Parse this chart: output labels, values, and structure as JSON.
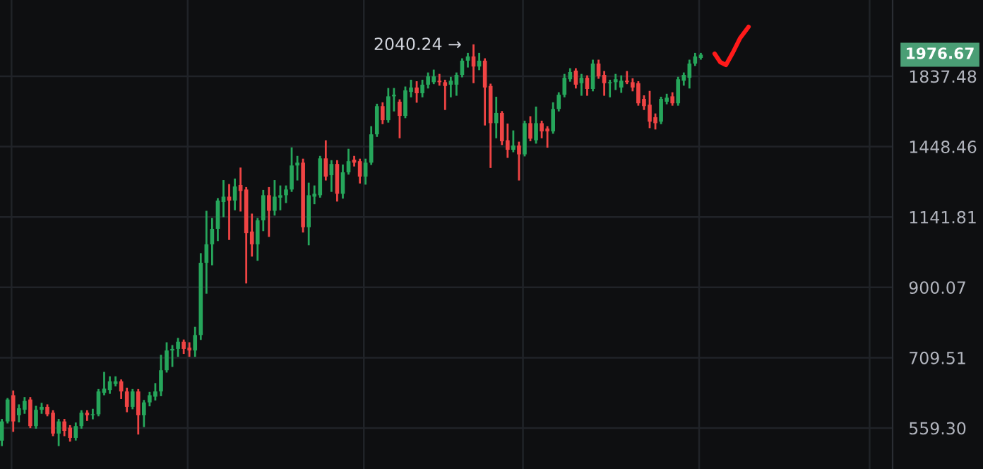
{
  "chart_data": {
    "type": "candlestick",
    "categories": [
      null,
      null,
      null,
      null,
      null,
      null,
      null,
      null,
      null,
      null,
      null,
      null,
      null,
      null,
      null,
      null,
      null,
      null,
      null,
      null,
      null,
      null,
      null,
      null,
      null,
      null,
      null,
      null,
      null,
      null,
      null,
      null,
      null,
      null,
      null,
      null,
      null,
      null,
      null,
      null,
      null,
      null,
      null,
      null,
      null,
      null,
      null,
      null,
      null,
      null,
      null,
      null,
      null,
      null,
      null,
      null,
      null,
      null,
      null,
      null,
      null,
      null,
      null,
      null,
      null,
      null,
      null,
      null,
      null,
      null,
      null,
      null,
      null,
      null,
      null,
      null,
      null,
      null,
      null,
      null,
      null,
      null,
      null,
      null,
      null,
      null,
      null,
      null,
      null,
      null,
      null,
      null,
      null,
      null,
      null,
      null,
      null,
      null,
      null,
      null,
      null,
      null,
      null,
      null,
      null,
      null,
      null,
      null,
      null,
      null,
      null,
      null,
      null,
      null,
      null,
      null,
      null,
      null,
      null,
      null,
      null,
      null,
      null,
      null,
      null,
      null,
      null,
      null,
      null,
      null,
      null,
      null,
      null,
      null,
      null,
      null,
      null,
      null,
      null,
      null,
      null,
      null,
      null,
      null,
      null,
      null,
      null,
      null,
      null,
      null,
      null,
      null,
      null,
      null,
      null,
      null,
      null
    ],
    "ohlc": [
      [
        536,
        575,
        528,
        572
      ],
      [
        572,
        617,
        570,
        616
      ],
      [
        625,
        633,
        554,
        572
      ],
      [
        584,
        604,
        572,
        598
      ],
      [
        595,
        619,
        589,
        613
      ],
      [
        616,
        619,
        561,
        563
      ],
      [
        563,
        601,
        560,
        595
      ],
      [
        595,
        607,
        589,
        601
      ],
      [
        601,
        604,
        584,
        586
      ],
      [
        589,
        592,
        546,
        549
      ],
      [
        549,
        575,
        528,
        572
      ],
      [
        572,
        575,
        546,
        554
      ],
      [
        560,
        563,
        536,
        541
      ],
      [
        541,
        568,
        538,
        563
      ],
      [
        563,
        592,
        560,
        589
      ],
      [
        589,
        592,
        575,
        584
      ],
      [
        584,
        595,
        578,
        586
      ],
      [
        586,
        636,
        584,
        633
      ],
      [
        630,
        674,
        627,
        639
      ],
      [
        636,
        664,
        630,
        655
      ],
      [
        649,
        664,
        646,
        655
      ],
      [
        655,
        657,
        619,
        633
      ],
      [
        633,
        639,
        592,
        601
      ],
      [
        601,
        636,
        598,
        633
      ],
      [
        633,
        636,
        549,
        584
      ],
      [
        584,
        613,
        563,
        610
      ],
      [
        610,
        630,
        604,
        625
      ],
      [
        622,
        649,
        616,
        633
      ],
      [
        633,
        714,
        625,
        680
      ],
      [
        680,
        745,
        677,
        727
      ],
      [
        727,
        738,
        690,
        731
      ],
      [
        731,
        756,
        714,
        749
      ],
      [
        749,
        752,
        721,
        731
      ],
      [
        734,
        745,
        714,
        727
      ],
      [
        727,
        785,
        714,
        766
      ],
      [
        766,
        1007,
        756,
        978
      ],
      [
        978,
        1162,
        884,
        1041
      ],
      [
        1041,
        1134,
        973,
        1097
      ],
      [
        1097,
        1213,
        1056,
        1207
      ],
      [
        1201,
        1289,
        1145,
        1223
      ],
      [
        1223,
        1272,
        1060,
        1207
      ],
      [
        1207,
        1296,
        1172,
        1266
      ],
      [
        1272,
        1345,
        1167,
        1247
      ],
      [
        1253,
        1259,
        915,
        1081
      ],
      [
        1087,
        1151,
        1002,
        1041
      ],
      [
        1041,
        1134,
        988,
        1129
      ],
      [
        1129,
        1247,
        1092,
        1229
      ],
      [
        1229,
        1259,
        1071,
        1166
      ],
      [
        1166,
        1289,
        1151,
        1223
      ],
      [
        1219,
        1266,
        1172,
        1229
      ],
      [
        1229,
        1266,
        1201,
        1253
      ],
      [
        1253,
        1440,
        1247,
        1359
      ],
      [
        1359,
        1399,
        1296,
        1372
      ],
      [
        1372,
        1386,
        1087,
        1103
      ],
      [
        1103,
        1278,
        1041,
        1229
      ],
      [
        1223,
        1266,
        1196,
        1235
      ],
      [
        1229,
        1399,
        1223,
        1392
      ],
      [
        1392,
        1475,
        1296,
        1309
      ],
      [
        1315,
        1379,
        1247,
        1366
      ],
      [
        1366,
        1379,
        1207,
        1235
      ],
      [
        1235,
        1359,
        1219,
        1328
      ],
      [
        1328,
        1433,
        1322,
        1379
      ],
      [
        1386,
        1399,
        1359,
        1372
      ],
      [
        1379,
        1386,
        1283,
        1309
      ],
      [
        1309,
        1386,
        1278,
        1372
      ],
      [
        1372,
        1547,
        1366,
        1510
      ],
      [
        1510,
        1669,
        1502,
        1661
      ],
      [
        1661,
        1677,
        1568,
        1584
      ],
      [
        1584,
        1760,
        1576,
        1717
      ],
      [
        1717,
        1760,
        1637,
        1726
      ],
      [
        1686,
        1694,
        1495,
        1607
      ],
      [
        1607,
        1769,
        1600,
        1752
      ],
      [
        1743,
        1810,
        1717,
        1769
      ],
      [
        1769,
        1801,
        1686,
        1735
      ],
      [
        1735,
        1810,
        1717,
        1786
      ],
      [
        1786,
        1855,
        1769,
        1837
      ],
      [
        1801,
        1873,
        1795,
        1837
      ],
      [
        1810,
        1846,
        1786,
        1801
      ],
      [
        1801,
        1810,
        1645,
        1778
      ],
      [
        1786,
        1828,
        1717,
        1810
      ],
      [
        1786,
        1855,
        1726,
        1846
      ],
      [
        1846,
        1946,
        1837,
        1937
      ],
      [
        1937,
        1982,
        1899,
        1965
      ],
      [
        1965,
        2040.24,
        1801,
        1899
      ],
      [
        1899,
        1982,
        1882,
        1937
      ],
      [
        1937,
        1946,
        1561,
        1769
      ],
      [
        1778,
        1786,
        1352,
        1568
      ],
      [
        1568,
        1709,
        1495,
        1623
      ],
      [
        1623,
        1628,
        1461,
        1475
      ],
      [
        1480,
        1561,
        1399,
        1433
      ],
      [
        1433,
        1525,
        1426,
        1454
      ],
      [
        1454,
        1468,
        1296,
        1411
      ],
      [
        1411,
        1576,
        1406,
        1568
      ],
      [
        1568,
        1600,
        1480,
        1488
      ],
      [
        1480,
        1653,
        1468,
        1568
      ],
      [
        1568,
        1576,
        1495,
        1525
      ],
      [
        1540,
        1547,
        1448,
        1525
      ],
      [
        1525,
        1677,
        1518,
        1645
      ],
      [
        1645,
        1735,
        1637,
        1726
      ],
      [
        1726,
        1846,
        1717,
        1828
      ],
      [
        1819,
        1882,
        1810,
        1864
      ],
      [
        1873,
        1882,
        1769,
        1786
      ],
      [
        1795,
        1846,
        1726,
        1828
      ],
      [
        1828,
        1837,
        1726,
        1760
      ],
      [
        1760,
        1937,
        1752,
        1918
      ],
      [
        1918,
        1937,
        1828,
        1837
      ],
      [
        1846,
        1864,
        1726,
        1795
      ],
      [
        1795,
        1810,
        1717,
        1801
      ],
      [
        1801,
        1846,
        1760,
        1819
      ],
      [
        1769,
        1837,
        1743,
        1810
      ],
      [
        1810,
        1864,
        1795,
        1801
      ],
      [
        1801,
        1819,
        1752,
        1769
      ],
      [
        1795,
        1801,
        1669,
        1677
      ],
      [
        1702,
        1717,
        1645,
        1661
      ],
      [
        1669,
        1743,
        1547,
        1576
      ],
      [
        1600,
        1615,
        1540,
        1568
      ],
      [
        1576,
        1709,
        1568,
        1702
      ],
      [
        1686,
        1726,
        1677,
        1709
      ],
      [
        1717,
        1735,
        1669,
        1677
      ],
      [
        1677,
        1828,
        1669,
        1819
      ],
      [
        1810,
        1855,
        1786,
        1846
      ],
      [
        1828,
        1937,
        1769,
        1918
      ],
      [
        1918,
        1982,
        1909,
        1965
      ],
      [
        1955,
        1982,
        1950,
        1976.67
      ],
      null,
      null,
      null,
      null,
      null,
      null,
      null,
      null,
      null,
      null,
      null,
      null,
      null,
      null,
      null,
      null,
      null,
      null,
      null,
      null,
      null,
      null,
      null,
      null,
      null,
      null,
      null,
      null,
      null,
      null,
      null,
      null,
      null
    ],
    "colors": [
      "#26a65b",
      "#26a65b",
      "#ef4444",
      "#26a65b",
      "#26a65b",
      "#ef4444",
      "#26a65b",
      "#26a65b",
      "#ef4444",
      "#ef4444",
      "#26a65b",
      "#ef4444",
      "#ef4444",
      "#26a65b",
      "#26a65b",
      "#ef4444",
      "#26a65b",
      "#26a65b",
      "#26a65b",
      "#26a65b",
      "#26a65b",
      "#ef4444",
      "#ef4444",
      "#26a65b",
      "#ef4444",
      "#26a65b",
      "#26a65b",
      "#26a65b",
      "#26a65b",
      "#26a65b",
      "#26a65b",
      "#26a65b",
      "#ef4444",
      "#ef4444",
      "#26a65b",
      "#26a65b",
      "#26a65b",
      "#26a65b",
      "#26a65b",
      "#26a65b",
      "#ef4444",
      "#26a65b",
      "#ef4444",
      "#ef4444",
      "#ef4444",
      "#26a65b",
      "#26a65b",
      "#ef4444",
      "#26a65b",
      "#26a65b",
      "#26a65b",
      "#26a65b",
      "#26a65b",
      "#ef4444",
      "#26a65b",
      "#26a65b",
      "#26a65b",
      "#ef4444",
      "#26a65b",
      "#ef4444",
      "#26a65b",
      "#26a65b",
      "#ef4444",
      "#ef4444",
      "#26a65b",
      "#26a65b",
      "#26a65b",
      "#ef4444",
      "#26a65b",
      "#26a65b",
      "#ef4444",
      "#26a65b",
      "#26a65b",
      "#ef4444",
      "#26a65b",
      "#26a65b",
      "#26a65b",
      "#ef4444",
      "#ef4444",
      "#26a65b",
      "#26a65b",
      "#26a65b",
      "#26a65b",
      "#ef4444",
      "#26a65b",
      "#ef4444",
      "#ef4444",
      "#26a65b",
      "#ef4444",
      "#ef4444",
      "#26a65b",
      "#ef4444",
      "#26a65b",
      "#ef4444",
      "#26a65b",
      "#ef4444",
      "#ef4444",
      "#26a65b",
      "#26a65b",
      "#26a65b",
      "#26a65b",
      "#ef4444",
      "#26a65b",
      "#ef4444",
      "#26a65b",
      "#ef4444",
      "#ef4444",
      "#26a65b",
      "#26a65b",
      "#26a65b",
      "#ef4444",
      "#ef4444",
      "#ef4444",
      "#ef4444",
      "#ef4444",
      "#ef4444",
      "#26a65b",
      "#26a65b",
      "#ef4444",
      "#26a65b",
      "#26a65b",
      "#26a65b",
      "#26a65b",
      "#26a65b",
      null,
      null,
      null,
      null,
      null,
      null,
      null,
      null,
      null,
      null,
      null,
      null,
      null,
      null,
      null,
      null,
      null,
      null,
      null,
      null,
      null,
      null,
      null,
      null,
      null,
      null,
      null,
      null,
      null,
      null,
      null,
      null,
      null
    ],
    "log": true,
    "ylim": [
      487,
      2378
    ],
    "yticks": [
      {
        "value": 559.3,
        "label": "559.30"
      },
      {
        "value": 709.51,
        "label": "709.51"
      },
      {
        "value": 900.07,
        "label": "900.07"
      },
      {
        "value": 1141.81,
        "label": "1141.81"
      },
      {
        "value": 1448.46,
        "label": "1448.46"
      },
      {
        "value": 1837.48,
        "label": "1837.48"
      }
    ],
    "grid": true,
    "annotations": [
      "2040.24 →",
      "1976.67"
    ]
  }
}
